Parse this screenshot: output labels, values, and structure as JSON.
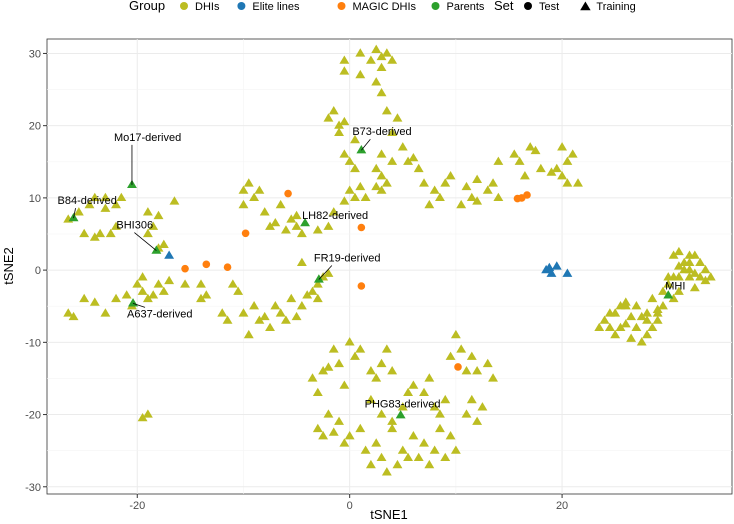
{
  "chart_data": {
    "type": "scatter",
    "title": "",
    "xlabel": "tSNE1",
    "ylabel": "tSNE2",
    "xlim": [
      -28.5,
      36
    ],
    "ylim": [
      -31,
      32
    ],
    "x_ticks": [
      -20,
      0,
      20
    ],
    "y_ticks": [
      -30,
      -20,
      -10,
      0,
      10,
      20,
      30
    ],
    "x_tick_labels": [
      "-20",
      "0",
      "20"
    ],
    "y_tick_labels": [
      "-30",
      "-20",
      "-10",
      "0",
      "10",
      "20",
      "30"
    ],
    "grid": true,
    "legend_position": "top",
    "legend": {
      "group_title": "Group",
      "group_items": [
        {
          "label": "DHIs",
          "color": "#bcbd22"
        },
        {
          "label": "Elite lines",
          "color": "#1f77b4"
        },
        {
          "label": "MAGIC DHIs",
          "color": "#ff7f0e"
        },
        {
          "label": "Parents",
          "color": "#2ca02c"
        }
      ],
      "set_title": "Set",
      "set_items": [
        {
          "label": "Test",
          "shape": "circle"
        },
        {
          "label": "Training",
          "shape": "triangle"
        }
      ]
    },
    "series": [
      {
        "group": "DHIs",
        "set": "Training",
        "color": "#bcbd22",
        "shape": "triangle",
        "points": [
          [
            -26.5,
            -6
          ],
          [
            -26,
            -6.5
          ],
          [
            -26.5,
            7
          ],
          [
            -25.5,
            8
          ],
          [
            -24.5,
            9
          ],
          [
            -24,
            10
          ],
          [
            -23,
            8.5
          ],
          [
            -23,
            10
          ],
          [
            -22,
            9
          ],
          [
            -21.5,
            10
          ],
          [
            -25,
            5
          ],
          [
            -24,
            4.5
          ],
          [
            -23.5,
            5
          ],
          [
            -22.5,
            5
          ],
          [
            -22,
            6
          ],
          [
            -25,
            -4
          ],
          [
            -24,
            -4.5
          ],
          [
            -23,
            -6
          ],
          [
            -22,
            -4
          ],
          [
            -21,
            -3.5
          ],
          [
            -20.5,
            -5
          ],
          [
            -19.5,
            -3
          ],
          [
            -19,
            -4
          ],
          [
            -18.5,
            -3.5
          ],
          [
            -18,
            -2
          ],
          [
            -17.5,
            -3
          ],
          [
            -17,
            -1.5
          ],
          [
            -20,
            -2
          ],
          [
            -19.5,
            -1
          ],
          [
            -19,
            8
          ],
          [
            -18.5,
            6
          ],
          [
            -18,
            7.5
          ],
          [
            -19,
            5
          ],
          [
            -18,
            3
          ],
          [
            -17.5,
            3.5
          ],
          [
            -16.5,
            9.5
          ],
          [
            -15.5,
            -2
          ],
          [
            -19,
            -20
          ],
          [
            -19.5,
            -20.5
          ],
          [
            -14,
            -4
          ],
          [
            -14,
            -2
          ],
          [
            -13.5,
            -3.5
          ],
          [
            -12,
            -6
          ],
          [
            -11.5,
            -7
          ],
          [
            -11,
            -2
          ],
          [
            -10.5,
            -3
          ],
          [
            -10,
            -6
          ],
          [
            -9.5,
            -9
          ],
          [
            -10,
            11
          ],
          [
            -10,
            9
          ],
          [
            -9.5,
            12
          ],
          [
            -9,
            10
          ],
          [
            -8.5,
            11
          ],
          [
            -8,
            8
          ],
          [
            -7.5,
            6
          ],
          [
            -7,
            6.5
          ],
          [
            -6.5,
            9
          ],
          [
            -6,
            5.5
          ],
          [
            -5.5,
            7
          ],
          [
            -5,
            6
          ],
          [
            -5,
            7.5
          ],
          [
            -4.5,
            5
          ],
          [
            -9,
            -5
          ],
          [
            -8.5,
            -7
          ],
          [
            -8,
            -6.5
          ],
          [
            -7.5,
            -8
          ],
          [
            -7,
            -5
          ],
          [
            -6.5,
            -6
          ],
          [
            -6,
            -7
          ],
          [
            -5.5,
            -4
          ],
          [
            -5,
            -6.5
          ],
          [
            -4.5,
            -5
          ],
          [
            -4,
            -3.5
          ],
          [
            -3.5,
            -3
          ],
          [
            -3,
            -2
          ],
          [
            -2.5,
            -1
          ],
          [
            -3,
            -4
          ],
          [
            -2,
            -0.5
          ],
          [
            -2,
            6
          ],
          [
            -1.5,
            8
          ],
          [
            -3,
            5.5
          ],
          [
            -4.5,
            1
          ],
          [
            -2,
            21
          ],
          [
            -1.5,
            22
          ],
          [
            -1,
            20
          ],
          [
            -1,
            19
          ],
          [
            -0.5,
            20.5
          ],
          [
            0,
            15
          ],
          [
            0.5,
            14
          ],
          [
            0.5,
            18
          ],
          [
            0,
            11
          ],
          [
            0.5,
            10
          ],
          [
            1,
            11.5
          ],
          [
            1.5,
            10
          ],
          [
            -0.5,
            9.5
          ],
          [
            -0.5,
            16
          ],
          [
            1,
            30
          ],
          [
            2,
            29
          ],
          [
            2.5,
            30.5
          ],
          [
            3,
            29.5
          ],
          [
            3.5,
            30
          ],
          [
            4,
            29
          ],
          [
            3,
            28
          ],
          [
            -0.5,
            27.5
          ],
          [
            -0.5,
            29
          ],
          [
            1,
            27
          ],
          [
            2.5,
            26
          ],
          [
            3,
            24.5
          ],
          [
            3.5,
            22
          ],
          [
            4,
            19
          ],
          [
            4.5,
            21
          ],
          [
            5,
            17
          ],
          [
            5.5,
            15
          ],
          [
            3,
            16
          ],
          [
            2.5,
            14
          ],
          [
            3,
            13
          ],
          [
            3.5,
            12
          ],
          [
            3,
            11
          ],
          [
            2.5,
            11.5
          ],
          [
            4,
            15
          ],
          [
            6,
            15.5
          ],
          [
            6.5,
            14
          ],
          [
            7,
            12
          ],
          [
            7.5,
            9
          ],
          [
            8,
            11
          ],
          [
            8.5,
            10
          ],
          [
            9,
            12
          ],
          [
            9.5,
            13
          ],
          [
            10.5,
            9
          ],
          [
            11,
            11.5
          ],
          [
            11.5,
            10
          ],
          [
            12,
            9.5
          ],
          [
            12,
            12.5
          ],
          [
            13,
            11
          ],
          [
            13.5,
            12
          ],
          [
            14,
            10
          ],
          [
            15.5,
            16
          ],
          [
            16,
            15
          ],
          [
            14,
            15
          ],
          [
            16.5,
            13
          ],
          [
            17,
            17
          ],
          [
            17.5,
            16.5
          ],
          [
            20,
            17
          ],
          [
            20.5,
            15
          ],
          [
            21,
            16
          ],
          [
            20,
            13
          ],
          [
            20.5,
            12
          ],
          [
            21.5,
            12
          ],
          [
            19.5,
            14
          ],
          [
            18,
            14
          ],
          [
            19,
            13.5
          ],
          [
            -3,
            -17
          ],
          [
            -2.5,
            -14
          ],
          [
            -2,
            -13.5
          ],
          [
            -3.5,
            -15
          ],
          [
            -1.5,
            -11
          ],
          [
            -1,
            -13
          ],
          [
            -0.5,
            -16
          ],
          [
            0,
            -10
          ],
          [
            0.5,
            -12
          ],
          [
            1,
            -11
          ],
          [
            2,
            -14
          ],
          [
            2.5,
            -15
          ],
          [
            3,
            -13
          ],
          [
            3.5,
            -11
          ],
          [
            4,
            -14
          ],
          [
            2,
            -18
          ],
          [
            3,
            -20
          ],
          [
            4,
            -21
          ],
          [
            5,
            -19
          ],
          [
            5.5,
            -17
          ],
          [
            6,
            -16
          ],
          [
            7,
            -17
          ],
          [
            7.5,
            -15
          ],
          [
            8,
            -19
          ],
          [
            8.5,
            -20
          ],
          [
            9,
            -18
          ],
          [
            9.5,
            -12
          ],
          [
            10,
            -9
          ],
          [
            10.5,
            -11
          ],
          [
            11,
            -14
          ],
          [
            11.5,
            -12
          ],
          [
            12,
            -14
          ],
          [
            13,
            -13
          ],
          [
            13.5,
            -15
          ],
          [
            -3,
            -22
          ],
          [
            -2.5,
            -23
          ],
          [
            -2,
            -20
          ],
          [
            -1,
            -21
          ],
          [
            -1.5,
            -22.5
          ],
          [
            -0.5,
            -24
          ],
          [
            0,
            -23
          ],
          [
            1,
            -22
          ],
          [
            1.5,
            -25
          ],
          [
            2,
            -27
          ],
          [
            2.5,
            -24
          ],
          [
            3,
            -26
          ],
          [
            3.5,
            -28
          ],
          [
            4,
            -22
          ],
          [
            4.5,
            -27
          ],
          [
            5,
            -25
          ],
          [
            5.5,
            -26
          ],
          [
            6,
            -23
          ],
          [
            6.5,
            -26
          ],
          [
            7,
            -24
          ],
          [
            7.5,
            -27
          ],
          [
            8,
            -25
          ],
          [
            8.5,
            -22
          ],
          [
            9,
            -26
          ],
          [
            9.5,
            -23
          ],
          [
            10,
            -25
          ],
          [
            11,
            -20
          ],
          [
            11.5,
            -18
          ],
          [
            12,
            -21
          ],
          [
            12.5,
            -19
          ],
          [
            23.5,
            -8
          ],
          [
            24,
            -7
          ],
          [
            24.5,
            -6
          ],
          [
            25,
            -9
          ],
          [
            25.5,
            -5
          ],
          [
            25.5,
            -8
          ],
          [
            26,
            -7.5
          ],
          [
            26.5,
            -9.5
          ],
          [
            27,
            -8
          ],
          [
            27.5,
            -10
          ],
          [
            28,
            -9
          ],
          [
            28,
            -7
          ],
          [
            28.5,
            -8
          ],
          [
            29,
            -5.5
          ],
          [
            29.5,
            -5
          ],
          [
            29,
            -7
          ],
          [
            29.5,
            -3
          ],
          [
            30,
            -2
          ],
          [
            30.5,
            -4
          ],
          [
            31,
            -1
          ],
          [
            31.5,
            0
          ],
          [
            32,
            1
          ],
          [
            32.5,
            2
          ],
          [
            32,
            -1
          ],
          [
            32.5,
            -2.5
          ],
          [
            33,
            -1
          ],
          [
            33.5,
            0
          ],
          [
            34,
            -1
          ],
          [
            31,
            -3
          ],
          [
            31.5,
            1
          ],
          [
            30.5,
            2
          ],
          [
            31,
            0.5
          ],
          [
            32,
            2
          ],
          [
            33,
            1
          ],
          [
            30.5,
            -1
          ],
          [
            26,
            -4.5
          ],
          [
            27,
            -5
          ],
          [
            28,
            -6
          ],
          [
            27.5,
            -6.5
          ],
          [
            26.5,
            -6.5
          ],
          [
            25,
            -6
          ],
          [
            24.5,
            -8
          ],
          [
            26,
            -5
          ],
          [
            31,
            2.5
          ],
          [
            32.5,
            -0.5
          ],
          [
            32,
            0
          ],
          [
            33.5,
            -1.5
          ],
          [
            30,
            -1
          ],
          [
            29,
            -6
          ],
          [
            28.5,
            -4
          ]
        ]
      },
      {
        "group": "Elite lines",
        "set": "Training",
        "color": "#1f77b4",
        "shape": "triangle",
        "points": [
          [
            -17,
            2
          ],
          [
            18.5,
            0
          ],
          [
            19,
            -0.5
          ],
          [
            19.5,
            0.5
          ],
          [
            20.5,
            -0.5
          ],
          [
            18.8,
            0.3
          ]
        ]
      },
      {
        "group": "MAGIC DHIs",
        "set": "Test",
        "color": "#ff7f0e",
        "shape": "circle",
        "points": [
          [
            -15.5,
            0.2
          ],
          [
            -13.5,
            0.8
          ],
          [
            -11.5,
            0.4
          ],
          [
            -9.8,
            5.1
          ],
          [
            -5.8,
            10.6
          ],
          [
            1.1,
            5.9
          ],
          [
            1.1,
            -2.2
          ],
          [
            15.8,
            9.9
          ],
          [
            16.2,
            10
          ],
          [
            16.7,
            10.4
          ],
          [
            10.2,
            -13.4
          ]
        ]
      },
      {
        "group": "Parents",
        "set": "Training",
        "color": "#2ca02c",
        "shape": "triangle",
        "points": [
          [
            -20.5,
            11.8
          ],
          [
            -26,
            7.2
          ],
          [
            -18.2,
            2.7
          ],
          [
            -20.4,
            -4.6
          ],
          [
            -4.2,
            6.5
          ],
          [
            1.1,
            16.6
          ],
          [
            -2.9,
            -1.3
          ],
          [
            4.8,
            -20.1
          ],
          [
            30,
            -3.5
          ]
        ]
      }
    ],
    "annotations": [
      {
        "label": "Mo17-derived",
        "x": -20.5,
        "y": 11.8
      },
      {
        "label": "B84-derived",
        "x": -26,
        "y": 7.2
      },
      {
        "label": "BHI306",
        "x": -18.2,
        "y": 2.7
      },
      {
        "label": "A637-derived",
        "x": -20.4,
        "y": -4.6
      },
      {
        "label": "LH82-derived",
        "x": -4.2,
        "y": 6.5
      },
      {
        "label": "B73-derived",
        "x": 1.1,
        "y": 16.6
      },
      {
        "label": "FR19-derived",
        "x": -2.9,
        "y": -1.3
      },
      {
        "label": "PHG83-derived",
        "x": 4.8,
        "y": -20.1
      },
      {
        "label": "MHI",
        "x": 30,
        "y": -3.5
      }
    ]
  }
}
